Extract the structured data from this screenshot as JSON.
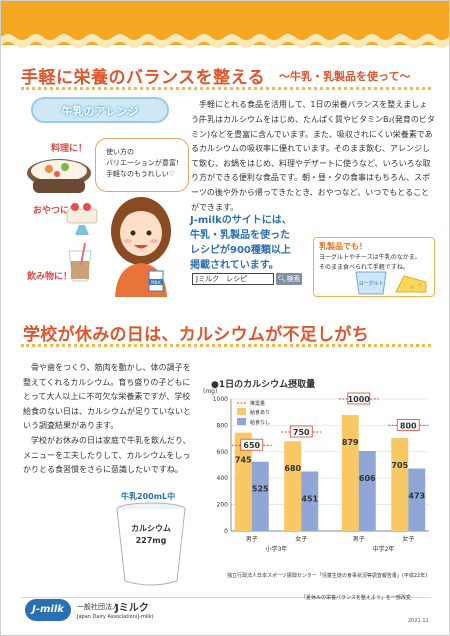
{
  "section1": {
    "title": "手軽に栄養のバランスを整える",
    "subtitle": "〜牛乳・乳製品を使って〜",
    "arrange_badge": "牛乳のアレンジ",
    "tags": [
      "料理に！",
      "おやつに！",
      "飲み物に！"
    ],
    "bubble": [
      "使い方の",
      "バリエーションが豊富!",
      "手軽なのもうれしい♡"
    ],
    "paragraph1": "手軽にとれる食品を活用して、1日の栄養バランスを整えましょう。",
    "paragraph2": "牛乳はカルシウムをはじめ、たんぱく質やビタミンB₂(発育のビタミン)などを豊富に含んでいます。また、吸収されにくい栄養素であるカルシウムの吸収率に優れています。そのまま飲む、アレンジして飲む、お鍋をはじめ、料理やデザートに使うなど、いろいろな取り方ができる便利な食品です。朝・昼・夕の食事はもちろん、スポーツの後や外から帰ってきたとき、おやつなど、いつでもとることができます。",
    "promo_lines": [
      "J-milkのサイトには、",
      "牛乳・乳製品を使った",
      "レシピが900種類以上",
      "掲載されています。"
    ],
    "search_value": "Jミルク　レシピ",
    "search_button": "検索",
    "milk_carton_label": "MILK",
    "dairy_box": {
      "heading": "乳製品でも！",
      "body": [
        "ヨーグルトやチーズは牛乳のなかま。",
        "そのまま食べられて手軽ですね。"
      ],
      "yogurt_label": "ヨーグルト"
    }
  },
  "section2": {
    "title": "学校が休みの日は、カルシウムが不足しがち",
    "paragraph1": "骨や歯をつくり、筋肉を動かし、体の調子を整えてくれるカルシウム。育ち盛りの子どもにとって大人以上に不可欠な栄養素ですが、学校給食のない日は、カルシウムが足りていないという調査結果があります。",
    "paragraph2": "学校がお休みの日は家庭で牛乳を飲んだり、メニューを工夫したりして、カルシウムをしっかりとる食習慣をさらに意識したいですね。",
    "milk_caption": "牛乳200mL中",
    "glass_label": "カルシウム",
    "glass_value": "227mg"
  },
  "chart_data": {
    "type": "bar",
    "title": "●1日のカルシウム摂取量",
    "ylabel": "(mg)",
    "ylim": [
      0,
      1000
    ],
    "yticks": [
      0,
      200,
      400,
      600,
      800,
      1000
    ],
    "groups": [
      "小学3年",
      "中学2年"
    ],
    "categories": [
      "男子",
      "女子",
      "男子",
      "女子"
    ],
    "series": [
      {
        "name": "給食あり",
        "values": [
          745,
          680,
          879,
          705
        ],
        "color": "#f8c866"
      },
      {
        "name": "給食なし",
        "values": [
          525,
          451,
          606,
          473
        ],
        "color": "#8fa6d6"
      }
    ],
    "recommended": {
      "name": "推奨量",
      "values": [
        650,
        750,
        1000,
        800
      ],
      "color": "#d9453a"
    },
    "legend_position": "top-left",
    "source": "独立行政法人日本スポーツ振興センター「児童生徒の食事状況等調査報告書」(平成22年)"
  },
  "footer": {
    "logo": "J-milk",
    "org_prefix": "一般社団法人",
    "org_name": "Jミルク",
    "org_en": "Japan Dairy Association(J-milk)",
    "note": "「夏休みの栄養バランスを整えよう」を一部改変",
    "date": "2021.11"
  },
  "colors": {
    "accent": "#e0552b",
    "orange": "#f5a623",
    "blue": "#2a6fb6"
  }
}
